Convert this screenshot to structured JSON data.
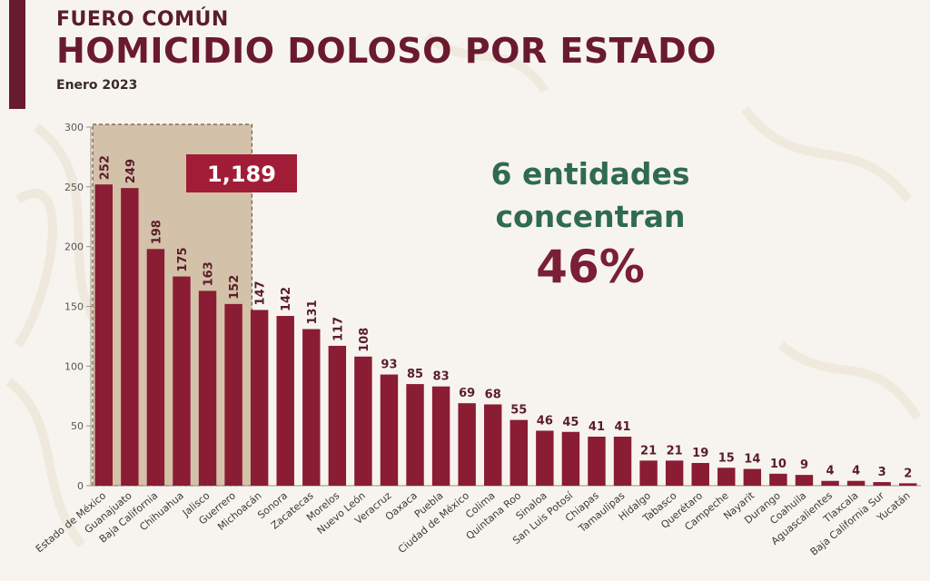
{
  "header": {
    "supertitle": "FUERO COMÚN",
    "title": "HOMICIDIO DOLOSO POR ESTADO",
    "subtitle": "Enero 2023"
  },
  "highlight": {
    "total_label": "1,189",
    "note_line1": "6 entidades",
    "note_line2": "concentran",
    "note_percent": "46%"
  },
  "colors": {
    "bar": "#8a1c33",
    "highlight_fill": "#cbb497",
    "badge": "#a11c37",
    "title": "#6a1a2f",
    "note_green": "#2f6b4f"
  },
  "chart_data": {
    "type": "bar",
    "title": "HOMICIDIO DOLOSO POR ESTADO",
    "xlabel": "",
    "ylabel": "",
    "ylim": [
      0,
      300
    ],
    "yticks": [
      0,
      50,
      100,
      150,
      200,
      250,
      300
    ],
    "highlight_count": 6,
    "categories": [
      "Estado de México",
      "Guanajuato",
      "Baja California",
      "Chihuahua",
      "Jalisco",
      "Guerrero",
      "Michoacán",
      "Sonora",
      "Zacatecas",
      "Morelos",
      "Nuevo León",
      "Veracruz",
      "Oaxaca",
      "Puebla",
      "Ciudad de México",
      "Colima",
      "Quintana Roo",
      "Sinaloa",
      "San Luis Potosí",
      "Chiapas",
      "Tamaulipas",
      "Hidalgo",
      "Tabasco",
      "Querétaro",
      "Campeche",
      "Nayarit",
      "Durango",
      "Coahuila",
      "Aguascalientes",
      "Tlaxcala",
      "Baja California Sur",
      "Yucatán"
    ],
    "values": [
      252,
      249,
      198,
      175,
      163,
      152,
      147,
      142,
      131,
      117,
      108,
      93,
      85,
      83,
      69,
      68,
      55,
      46,
      45,
      41,
      41,
      21,
      21,
      19,
      15,
      14,
      10,
      9,
      4,
      4,
      3,
      2
    ]
  }
}
